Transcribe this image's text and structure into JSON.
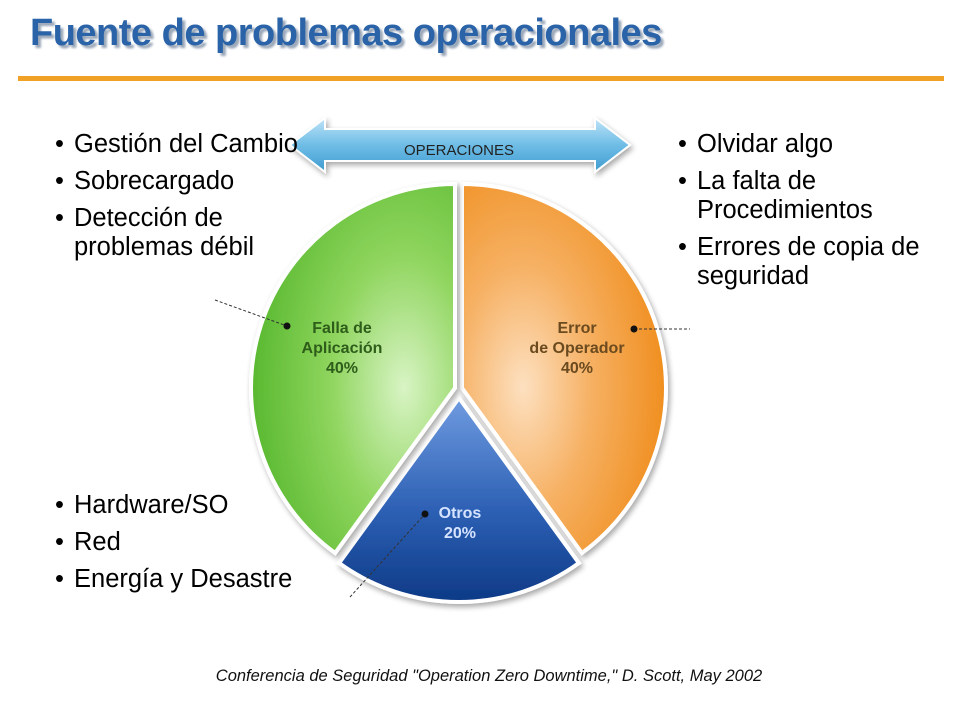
{
  "title": "Fuente de problemas operacionales",
  "arrow_label": "OPERACIONES",
  "left_top_bullets": [
    "Gestión del Cambio",
    "Sobrecargado",
    "Detección de problemas débil"
  ],
  "right_top_bullets": [
    "Olvidar algo",
    "La falta de Procedimientos",
    "Errores de copia de seguridad"
  ],
  "left_bottom_bullets": [
    "Hardware/SO",
    "Red",
    "Energía y Desastre"
  ],
  "footer": "Conferencia de Seguridad \"Operation Zero Downtime,\" D. Scott, May 2002",
  "colors": {
    "title": "#2a63a8",
    "rule": "#f0a126",
    "error": "#f39a2a",
    "falla": "#66c237",
    "otros": "#1f55a8"
  },
  "chart_data": {
    "type": "pie",
    "slices": [
      {
        "name": "Error de Operador",
        "value": 40,
        "label_lines": [
          "Error",
          "de Operador",
          "40%"
        ],
        "color": "#f39a2a"
      },
      {
        "name": "Otros",
        "value": 20,
        "label_lines": [
          "Otros",
          "20%"
        ],
        "color": "#1f55a8"
      },
      {
        "name": "Falla de Aplicación",
        "value": 40,
        "label_lines": [
          "Falla de",
          "Aplicación",
          "40%"
        ],
        "color": "#66c237"
      }
    ]
  }
}
